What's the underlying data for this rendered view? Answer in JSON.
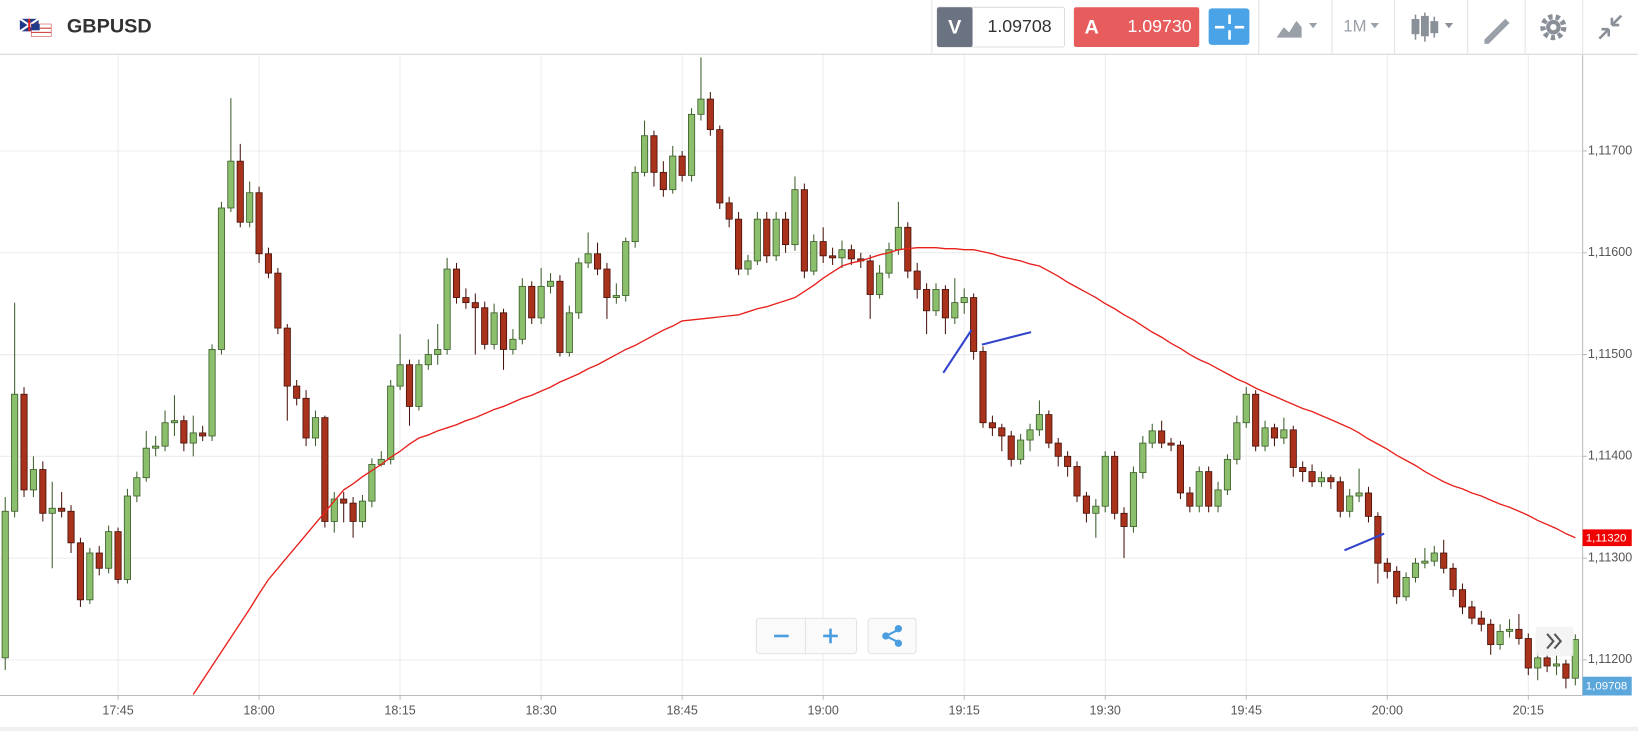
{
  "toolbar": {
    "symbol": "GBPUSD",
    "sell_label": "V",
    "sell_price": "1.09708",
    "buy_label": "A",
    "buy_price": "1.09730",
    "timeframe": "1M"
  },
  "chart_data": {
    "type": "candlestick",
    "up_color": "#8cbf6c",
    "down_color": "#a8321c",
    "grid": true,
    "ylim": [
      1.11165,
      1.11795
    ],
    "yticks": [
      {
        "value": 1.112,
        "label": "1,11200"
      },
      {
        "value": 1.113,
        "label": "1,11300"
      },
      {
        "value": 1.114,
        "label": "1,11400"
      },
      {
        "value": 1.115,
        "label": "1,11500"
      },
      {
        "value": 1.116,
        "label": "1,11600"
      },
      {
        "value": 1.117,
        "label": "1,11700"
      }
    ],
    "categories": [
      null,
      null,
      null,
      null,
      null,
      null,
      null,
      null,
      null,
      null,
      null,
      null,
      "17:45",
      null,
      null,
      null,
      null,
      null,
      null,
      null,
      null,
      null,
      null,
      null,
      null,
      null,
      null,
      "18:00",
      null,
      null,
      null,
      null,
      null,
      null,
      null,
      null,
      null,
      null,
      null,
      null,
      null,
      null,
      "18:15",
      null,
      null,
      null,
      null,
      null,
      null,
      null,
      null,
      null,
      null,
      null,
      null,
      null,
      null,
      "18:30",
      null,
      null,
      null,
      null,
      null,
      null,
      null,
      null,
      null,
      null,
      null,
      null,
      null,
      null,
      "18:45",
      null,
      null,
      null,
      null,
      null,
      null,
      null,
      null,
      null,
      null,
      null,
      null,
      null,
      null,
      "19:00",
      null,
      null,
      null,
      null,
      null,
      null,
      null,
      null,
      null,
      null,
      null,
      null,
      null,
      null,
      "19:15",
      null,
      null,
      null,
      null,
      null,
      null,
      null,
      null,
      null,
      null,
      null,
      null,
      null,
      null,
      "19:30",
      null,
      null,
      null,
      null,
      null,
      null,
      null,
      null,
      null,
      null,
      null,
      null,
      null,
      null,
      "19:45",
      null,
      null,
      null,
      null,
      null,
      null,
      null,
      null,
      null,
      null,
      null,
      null,
      null,
      null,
      "20:00",
      null,
      null,
      null,
      null,
      null,
      null,
      null,
      null,
      null,
      null,
      null,
      null,
      null,
      null,
      "20:15",
      null,
      null,
      null,
      null,
      null
    ],
    "open": [
      1.11202,
      1.11346,
      1.11461,
      1.11367,
      1.11387,
      1.11344,
      1.11349,
      1.11346,
      1.11315,
      1.11259,
      1.11305,
      1.1129,
      1.11326,
      1.11279,
      1.11361,
      1.11379,
      1.11408,
      1.1141,
      1.11433,
      1.11435,
      1.11413,
      1.11423,
      1.1142,
      1.11505,
      1.11644,
      1.1169,
      1.1163,
      1.11659,
      1.11599,
      1.1158,
      1.11526,
      1.11469,
      1.11457,
      1.11418,
      1.11438,
      1.11336,
      1.11358,
      1.11354,
      1.11336,
      1.11356,
      1.11392,
      1.11397,
      1.11469,
      1.1149,
      1.11449,
      1.1149,
      1.115,
      1.11505,
      1.11584,
      1.11556,
      1.11551,
      1.11546,
      1.1151,
      1.11541,
      1.11505,
      1.11515,
      1.11567,
      1.11536,
      1.11567,
      1.11572,
      1.11502,
      1.11541,
      1.1159,
      1.11599,
      1.11584,
      1.11556,
      1.11558,
      1.11611,
      1.11679,
      1.11715,
      1.11679,
      1.11662,
      1.11695,
      1.11676,
      1.11736,
      1.11751,
      1.11721,
      1.11649,
      1.11633,
      1.11584,
      1.11592,
      1.11633,
      1.11597,
      1.11633,
      1.11608,
      1.11662,
      1.11582,
      1.11611,
      1.11597,
      1.11595,
      1.11603,
      1.11594,
      1.11592,
      1.11559,
      1.1158,
      1.11603,
      1.11625,
      1.11582,
      1.11564,
      1.11543,
      1.11564,
      1.11536,
      1.11551,
      1.11556,
      1.11503,
      1.11433,
      1.11428,
      1.1142,
      1.11397,
      1.11416,
      1.11426,
      1.11441,
      1.11413,
      1.114,
      1.1139,
      1.11361,
      1.11344,
      1.11351,
      1.114,
      1.11344,
      1.11331,
      1.11384,
      1.11413,
      1.11425,
      1.11413,
      1.11411,
      1.11364,
      1.11351,
      1.11385,
      1.11351,
      1.11367,
      1.11397,
      1.11433,
      1.11461,
      1.1141,
      1.11428,
      1.11418,
      1.11426,
      1.11389,
      1.11385,
      1.11375,
      1.11379,
      1.11375,
      1.11346,
      1.11361,
      1.11364,
      1.11341,
      1.11295,
      1.11287,
      1.11262,
      1.11281,
      1.11295,
      1.11297,
      1.11305,
      1.1129,
      1.11269,
      1.11252,
      1.11241,
      1.11235,
      1.11215,
      1.11228,
      1.1123,
      1.11221,
      1.11192,
      1.11202,
      1.11194,
      1.11196,
      1.11182
    ],
    "high": [
      1.1136,
      1.11551,
      1.11468,
      1.114,
      1.11395,
      1.11375,
      1.11365,
      1.11352,
      1.1132,
      1.1131,
      1.11312,
      1.11332,
      1.1133,
      1.11368,
      1.11385,
      1.11425,
      1.1142,
      1.11445,
      1.1146,
      1.1144,
      1.1144,
      1.1143,
      1.1151,
      1.1165,
      1.11752,
      1.11707,
      1.1167,
      1.11665,
      1.11605,
      1.11585,
      1.1153,
      1.11475,
      1.11465,
      1.11445,
      1.1144,
      1.11365,
      1.11365,
      1.1136,
      1.11362,
      1.11398,
      1.11405,
      1.11475,
      1.1152,
      1.11495,
      1.11495,
      1.11515,
      1.1153,
      1.11595,
      1.1159,
      1.11565,
      1.1156,
      1.11552,
      1.1155,
      1.11545,
      1.11525,
      1.11575,
      1.11572,
      1.11585,
      1.1158,
      1.11578,
      1.11548,
      1.11595,
      1.1162,
      1.1161,
      1.1159,
      1.1157,
      1.11615,
      1.11685,
      1.1173,
      1.1172,
      1.1169,
      1.11705,
      1.117,
      1.11742,
      1.11792,
      1.11758,
      1.11725,
      1.11655,
      1.1164,
      1.11598,
      1.1164,
      1.1164,
      1.1164,
      1.1164,
      1.11675,
      1.11668,
      1.11618,
      1.11625,
      1.11605,
      1.11612,
      1.11608,
      1.116,
      1.11598,
      1.11588,
      1.1161,
      1.1165,
      1.1163,
      1.1159,
      1.1157,
      1.1157,
      1.11568,
      1.11575,
      1.11565,
      1.1156,
      1.11508,
      1.1144,
      1.11432,
      1.11425,
      1.11422,
      1.11432,
      1.11455,
      1.11445,
      1.11418,
      1.11405,
      1.11395,
      1.11365,
      1.11358,
      1.11405,
      1.11405,
      1.1135,
      1.1139,
      1.1142,
      1.11432,
      1.11435,
      1.11418,
      1.11415,
      1.1137,
      1.1139,
      1.1139,
      1.11375,
      1.11402,
      1.1144,
      1.11468,
      1.11465,
      1.11435,
      1.11432,
      1.11438,
      1.1143,
      1.11395,
      1.11392,
      1.11385,
      1.11382,
      1.1138,
      1.11368,
      1.11388,
      1.1137,
      1.11345,
      1.113,
      1.11292,
      1.11286,
      1.113,
      1.1131,
      1.11312,
      1.11318,
      1.11295,
      1.11275,
      1.11258,
      1.11248,
      1.1124,
      1.11235,
      1.1124,
      1.11245,
      1.11226,
      1.11208,
      1.11206,
      1.11205,
      1.112,
      1.11225
    ],
    "low": [
      1.1119,
      1.1134,
      1.1136,
      1.1136,
      1.11336,
      1.1129,
      1.1134,
      1.11305,
      1.11252,
      1.11255,
      1.11283,
      1.11285,
      1.11275,
      1.11275,
      1.11355,
      1.11375,
      1.114,
      1.11405,
      1.1142,
      1.11405,
      1.114,
      1.11415,
      1.11415,
      1.115,
      1.1164,
      1.11625,
      1.11625,
      1.1159,
      1.11575,
      1.1152,
      1.11435,
      1.1145,
      1.1141,
      1.1141,
      1.1133,
      1.11325,
      1.11335,
      1.1132,
      1.1133,
      1.1135,
      1.1139,
      1.11392,
      1.11465,
      1.1143,
      1.11445,
      1.11485,
      1.1149,
      1.115,
      1.1155,
      1.11545,
      1.115,
      1.11505,
      1.11505,
      1.11485,
      1.115,
      1.1151,
      1.1153,
      1.1153,
      1.1156,
      1.11498,
      1.11498,
      1.11535,
      1.11585,
      1.11578,
      1.11535,
      1.1155,
      1.11552,
      1.11605,
      1.11675,
      1.11665,
      1.11655,
      1.11658,
      1.1167,
      1.1167,
      1.1173,
      1.11715,
      1.11643,
      1.11625,
      1.11578,
      1.11578,
      1.11588,
      1.1159,
      1.11592,
      1.116,
      1.11602,
      1.11575,
      1.11578,
      1.1159,
      1.11588,
      1.11585,
      1.11588,
      1.11585,
      1.11535,
      1.11555,
      1.11575,
      1.11598,
      1.11575,
      1.11555,
      1.1152,
      1.11538,
      1.1152,
      1.1153,
      1.1154,
      1.11495,
      1.11428,
      1.1142,
      1.11405,
      1.1139,
      1.11392,
      1.11405,
      1.1142,
      1.11408,
      1.1139,
      1.1138,
      1.11355,
      1.11335,
      1.1132,
      1.11345,
      1.11338,
      1.113,
      1.11325,
      1.11378,
      1.11408,
      1.11408,
      1.11405,
      1.11358,
      1.11345,
      1.11345,
      1.11345,
      1.11345,
      1.11362,
      1.11392,
      1.11428,
      1.11405,
      1.11405,
      1.1141,
      1.11412,
      1.1138,
      1.11375,
      1.1137,
      1.1137,
      1.11368,
      1.1134,
      1.1134,
      1.11355,
      1.11335,
      1.11275,
      1.1128,
      1.11255,
      1.11258,
      1.11276,
      1.1129,
      1.11292,
      1.11285,
      1.11262,
      1.11245,
      1.11235,
      1.11228,
      1.11205,
      1.1121,
      1.11222,
      1.11215,
      1.11185,
      1.1118,
      1.11188,
      1.11185,
      1.11172,
      1.11175
    ],
    "close": [
      1.11346,
      1.11461,
      1.11367,
      1.11387,
      1.11344,
      1.11349,
      1.11346,
      1.11315,
      1.11259,
      1.11305,
      1.1129,
      1.11326,
      1.11279,
      1.11361,
      1.11379,
      1.11408,
      1.1141,
      1.11433,
      1.11435,
      1.11413,
      1.11423,
      1.1142,
      1.11505,
      1.11644,
      1.1169,
      1.1163,
      1.11659,
      1.11599,
      1.1158,
      1.11526,
      1.11469,
      1.11457,
      1.11418,
      1.11438,
      1.11336,
      1.11358,
      1.11354,
      1.11336,
      1.11356,
      1.11392,
      1.11397,
      1.11469,
      1.1149,
      1.11449,
      1.1149,
      1.115,
      1.11505,
      1.11584,
      1.11556,
      1.11551,
      1.11546,
      1.1151,
      1.11541,
      1.11505,
      1.11515,
      1.11567,
      1.11536,
      1.11567,
      1.11572,
      1.11502,
      1.11541,
      1.1159,
      1.11599,
      1.11584,
      1.11556,
      1.11558,
      1.11611,
      1.11679,
      1.11715,
      1.11679,
      1.11662,
      1.11695,
      1.11676,
      1.11736,
      1.11751,
      1.11721,
      1.11649,
      1.11633,
      1.11584,
      1.11592,
      1.11633,
      1.11597,
      1.11633,
      1.11608,
      1.11662,
      1.11582,
      1.11611,
      1.11597,
      1.11595,
      1.11603,
      1.11594,
      1.11592,
      1.11559,
      1.1158,
      1.11603,
      1.11625,
      1.11582,
      1.11564,
      1.11543,
      1.11564,
      1.11536,
      1.11551,
      1.11556,
      1.11503,
      1.11433,
      1.11428,
      1.1142,
      1.11397,
      1.11416,
      1.11426,
      1.11441,
      1.11413,
      1.114,
      1.1139,
      1.11361,
      1.11344,
      1.11351,
      1.114,
      1.11344,
      1.11331,
      1.11384,
      1.11413,
      1.11425,
      1.11413,
      1.11411,
      1.11364,
      1.11351,
      1.11385,
      1.11351,
      1.11367,
      1.11397,
      1.11433,
      1.11461,
      1.1141,
      1.11428,
      1.11418,
      1.11426,
      1.11389,
      1.11385,
      1.11375,
      1.11379,
      1.11375,
      1.11346,
      1.11361,
      1.11364,
      1.11341,
      1.11295,
      1.11287,
      1.11262,
      1.11281,
      1.11295,
      1.11297,
      1.11305,
      1.1129,
      1.11269,
      1.11252,
      1.11241,
      1.11235,
      1.11215,
      1.11228,
      1.1123,
      1.11221,
      1.11192,
      1.11202,
      1.11194,
      1.11196,
      1.11182,
      1.1122
    ],
    "moving_average": {
      "color": "#e8211d",
      "values": [
        null,
        null,
        null,
        null,
        null,
        null,
        null,
        null,
        null,
        null,
        null,
        null,
        null,
        null,
        null,
        null,
        null,
        null,
        null,
        null,
        1.11166,
        1.1118,
        1.11194,
        1.11208,
        1.11222,
        1.11236,
        1.1125,
        1.11265,
        1.11279,
        1.1129,
        1.11301,
        1.11312,
        1.11323,
        1.11334,
        1.11345,
        1.11356,
        1.11367,
        1.11373,
        1.1138,
        1.11386,
        1.11392,
        1.11399,
        1.11405,
        1.11412,
        1.11418,
        1.11421,
        1.11425,
        1.11428,
        1.11431,
        1.11435,
        1.11438,
        1.11442,
        1.11446,
        1.11449,
        1.11453,
        1.11457,
        1.1146,
        1.11464,
        1.11468,
        1.11473,
        1.11477,
        1.11481,
        1.11486,
        1.1149,
        1.11495,
        1.115,
        1.11505,
        1.11509,
        1.11514,
        1.11519,
        1.11524,
        1.11528,
        1.11533,
        1.11534,
        1.11535,
        1.11536,
        1.11537,
        1.11538,
        1.11539,
        1.11542,
        1.11545,
        1.11547,
        1.1155,
        1.11553,
        1.11556,
        1.11562,
        1.11568,
        1.11575,
        1.11581,
        1.11587,
        1.1159,
        1.11592,
        1.11595,
        1.11598,
        1.116,
        1.11603,
        1.11604,
        1.11605,
        1.11605,
        1.11605,
        1.11604,
        1.11604,
        1.11603,
        1.11603,
        1.11601,
        1.11599,
        1.11596,
        1.11594,
        1.11592,
        1.11589,
        1.11587,
        1.11582,
        1.11577,
        1.11571,
        1.11566,
        1.11561,
        1.11556,
        1.1155,
        1.11545,
        1.11539,
        1.11534,
        1.11528,
        1.11522,
        1.11517,
        1.11511,
        1.11506,
        1.115,
        1.11495,
        1.11491,
        1.11486,
        1.11481,
        1.11476,
        1.11472,
        1.11467,
        1.11463,
        1.11459,
        1.11455,
        1.11451,
        1.11447,
        1.11444,
        1.1144,
        1.11436,
        1.11432,
        1.11428,
        1.11423,
        1.11417,
        1.11412,
        1.11407,
        1.11401,
        1.11396,
        1.11391,
        1.11385,
        1.1138,
        1.11375,
        1.11371,
        1.11368,
        1.11364,
        1.11361,
        1.11357,
        1.11353,
        1.1135,
        1.11346,
        1.11342,
        1.11337,
        1.11333,
        1.11329,
        1.11324,
        1.1132
      ]
    },
    "price_tags": [
      {
        "value": 1.1132,
        "label": "1,11320",
        "color": "#f00000"
      }
    ],
    "bid_tag": {
      "label": "1,09708",
      "color": "#5ba7dc"
    }
  }
}
